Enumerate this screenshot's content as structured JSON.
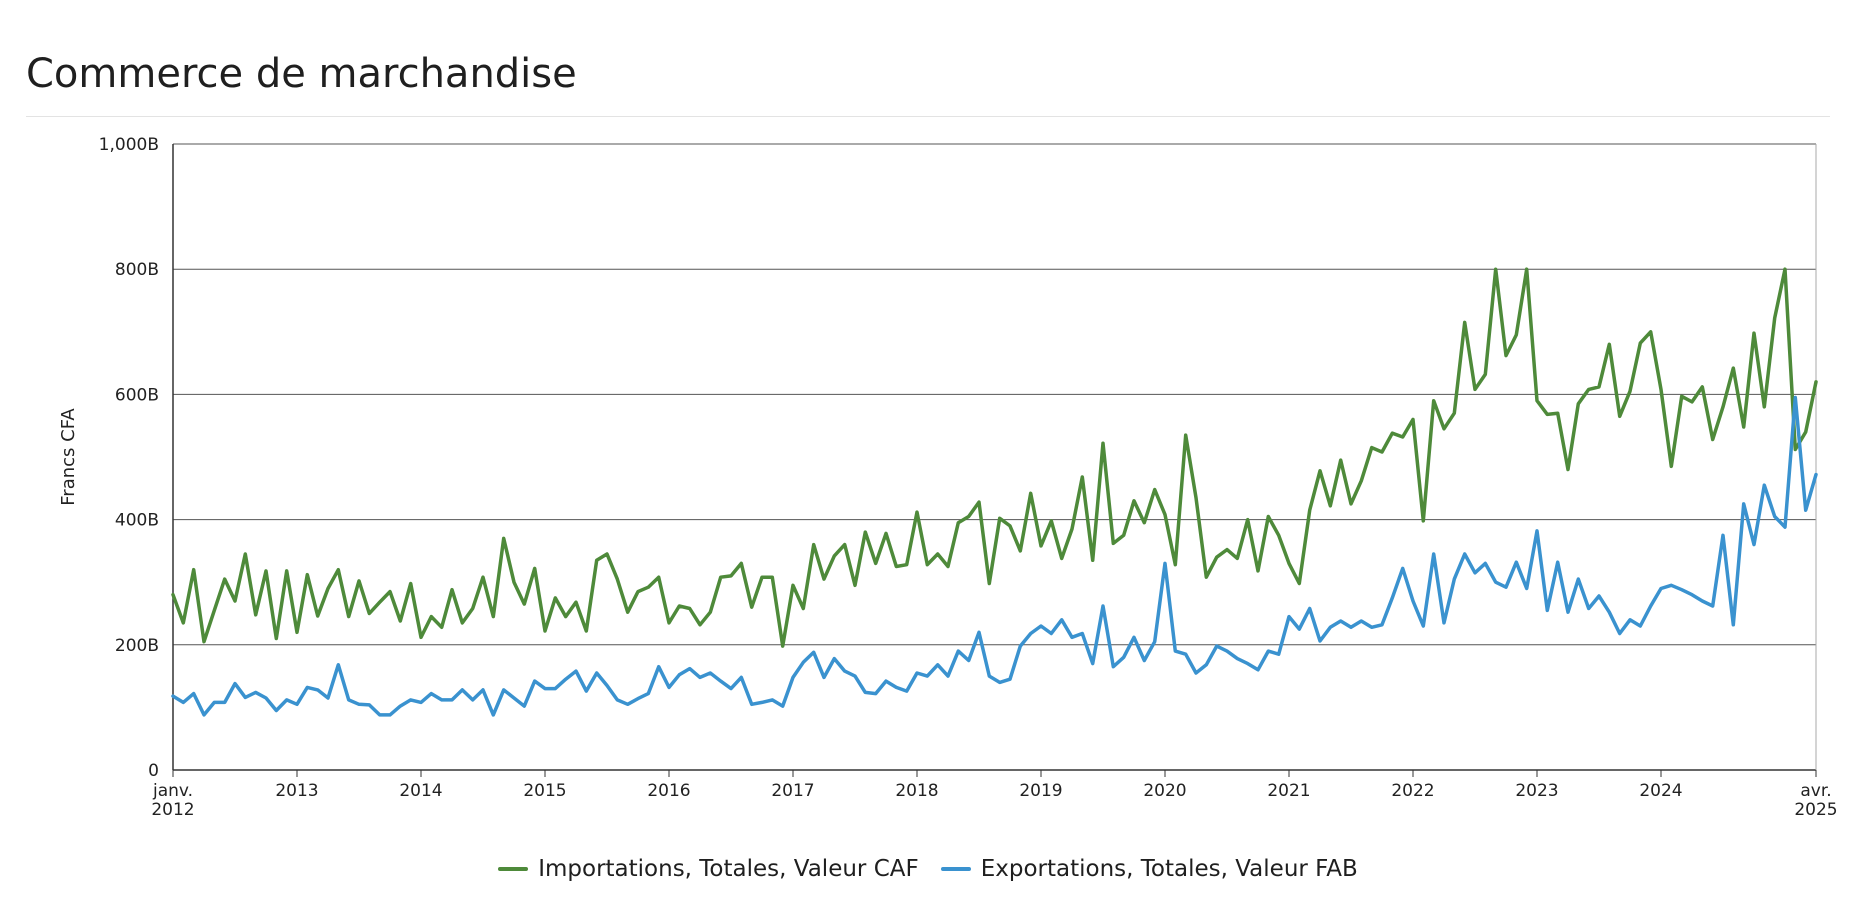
{
  "page": {
    "title": "Commerce de marchandise"
  },
  "chart_data": {
    "type": "line",
    "title": "Commerce de marchandise",
    "ylabel": "Francs CFA",
    "xlabel": "",
    "ylim": [
      0,
      1000
    ],
    "yticks": [
      {
        "value": 0,
        "label": "0"
      },
      {
        "value": 200,
        "label": "200B"
      },
      {
        "value": 400,
        "label": "400B"
      },
      {
        "value": 600,
        "label": "600B"
      },
      {
        "value": 800,
        "label": "800B"
      },
      {
        "value": 1000,
        "label": "1,000B"
      }
    ],
    "xlim_month_index": [
      0,
      159
    ],
    "xticks": [
      {
        "month_index": 0,
        "line1": "janv.",
        "line2": "2012"
      },
      {
        "month_index": 12,
        "line1": "2013",
        "line2": ""
      },
      {
        "month_index": 24,
        "line1": "2014",
        "line2": ""
      },
      {
        "month_index": 36,
        "line1": "2015",
        "line2": ""
      },
      {
        "month_index": 48,
        "line1": "2016",
        "line2": ""
      },
      {
        "month_index": 60,
        "line1": "2017",
        "line2": ""
      },
      {
        "month_index": 72,
        "line1": "2018",
        "line2": ""
      },
      {
        "month_index": 84,
        "line1": "2019",
        "line2": ""
      },
      {
        "month_index": 96,
        "line1": "2020",
        "line2": ""
      },
      {
        "month_index": 108,
        "line1": "2021",
        "line2": ""
      },
      {
        "month_index": 120,
        "line1": "2022",
        "line2": ""
      },
      {
        "month_index": 132,
        "line1": "2023",
        "line2": ""
      },
      {
        "month_index": 144,
        "line1": "2024",
        "line2": ""
      },
      {
        "month_index": 159,
        "line1": "avr.",
        "line2": "2025"
      }
    ],
    "x_start": "janv. 2012",
    "x_end": "avr. 2025",
    "grid": true,
    "legend_position": "bottom-center",
    "series": [
      {
        "name": "Importations, Totales, Valeur CAF",
        "color": "#4e8a3a",
        "values": [
          280,
          235,
          320,
          205,
          255,
          305,
          270,
          345,
          248,
          318,
          210,
          318,
          220,
          312,
          246,
          290,
          320,
          245,
          302,
          250,
          268,
          285,
          238,
          298,
          212,
          245,
          228,
          288,
          235,
          258,
          308,
          245,
          370,
          300,
          265,
          322,
          222,
          275,
          245,
          268,
          222,
          335,
          345,
          305,
          252,
          285,
          292,
          308,
          235,
          262,
          258,
          232,
          252,
          308,
          310,
          330,
          260,
          308,
          308,
          198,
          295,
          258,
          360,
          305,
          342,
          360,
          295,
          380,
          330,
          378,
          325,
          328,
          412,
          328,
          345,
          325,
          395,
          405,
          428,
          298,
          402,
          390,
          350,
          442,
          358,
          398,
          338,
          385,
          468,
          335,
          522,
          362,
          375,
          430,
          395,
          448,
          408,
          328,
          535,
          435,
          308,
          340,
          352,
          338,
          400,
          318,
          405,
          375,
          330,
          298,
          415,
          478,
          422,
          495,
          425,
          462,
          515,
          508,
          538,
          532,
          560,
          398,
          590,
          545,
          570,
          715,
          608,
          632,
          800,
          662,
          695,
          800,
          590,
          568,
          570,
          480,
          585,
          608,
          612,
          680,
          565,
          605,
          682,
          700,
          608,
          485,
          597,
          588,
          612,
          528,
          580,
          642,
          548,
          698,
          580,
          722,
          800,
          512,
          540,
          620
        ]
      },
      {
        "name": "Exportations, Totales, Valeur FAB",
        "color": "#3a92cf",
        "values": [
          118,
          108,
          122,
          88,
          108,
          108,
          138,
          116,
          124,
          115,
          95,
          112,
          105,
          132,
          128,
          115,
          168,
          112,
          105,
          104,
          88,
          88,
          102,
          112,
          108,
          122,
          112,
          112,
          128,
          112,
          128,
          88,
          128,
          115,
          102,
          142,
          130,
          130,
          145,
          158,
          126,
          155,
          135,
          112,
          105,
          114,
          122,
          165,
          132,
          152,
          162,
          148,
          155,
          142,
          130,
          148,
          105,
          108,
          112,
          102,
          148,
          172,
          188,
          148,
          178,
          158,
          150,
          124,
          122,
          142,
          132,
          126,
          155,
          150,
          168,
          150,
          190,
          175,
          220,
          150,
          140,
          145,
          198,
          218,
          230,
          218,
          240,
          212,
          218,
          170,
          262,
          165,
          180,
          212,
          175,
          205,
          330,
          190,
          185,
          155,
          168,
          198,
          190,
          178,
          170,
          160,
          190,
          185,
          245,
          225,
          258,
          206,
          228,
          238,
          228,
          238,
          228,
          232,
          275,
          322,
          270,
          230,
          345,
          235,
          305,
          345,
          315,
          330,
          300,
          292,
          332,
          290,
          382,
          255,
          332,
          252,
          305,
          258,
          278,
          252,
          218,
          240,
          230,
          262,
          290,
          295,
          288,
          280,
          270,
          262,
          375,
          232,
          425,
          360,
          455,
          405,
          388,
          595,
          415,
          472
        ]
      }
    ]
  }
}
